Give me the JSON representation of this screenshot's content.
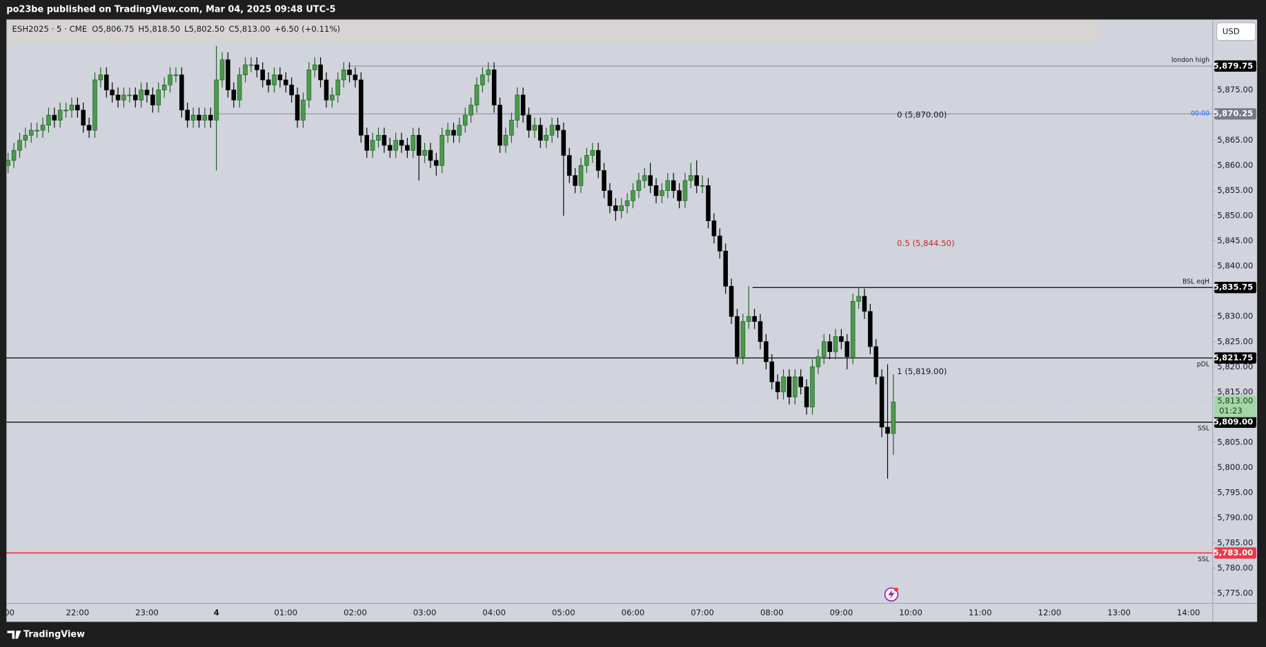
{
  "header": {
    "published": "po23be published on TradingView.com, Mar 04, 2025 09:48 UTC-5"
  },
  "footer": {
    "brand": "TradingView"
  },
  "chart_data": {
    "type": "candlestick",
    "legend": {
      "symbol": "ESH2025 · 5 · CME",
      "values": [
        "O5,806.75",
        "H5,818.50",
        "L5,802.50",
        "C5,813.00",
        "+6.50 (+0.11%)"
      ]
    },
    "currency": "USD",
    "categories": [
      ":00",
      null,
      null,
      null,
      null,
      null,
      null,
      null,
      null,
      null,
      null,
      null,
      "22:00",
      null,
      null,
      null,
      null,
      null,
      null,
      null,
      null,
      null,
      null,
      null,
      "23:00",
      null,
      null,
      null,
      null,
      null,
      null,
      null,
      null,
      null,
      null,
      null,
      "4",
      null,
      null,
      null,
      null,
      null,
      null,
      null,
      null,
      null,
      null,
      null,
      "01:00",
      null,
      null,
      null,
      null,
      null,
      null,
      null,
      null,
      null,
      null,
      null,
      "02:00",
      null,
      null,
      null,
      null,
      null,
      null,
      null,
      null,
      null,
      null,
      null,
      "03:00",
      null,
      null,
      null,
      null,
      null,
      null,
      null,
      null,
      null,
      null,
      null,
      "04:00",
      null,
      null,
      null,
      null,
      null,
      null,
      null,
      null,
      null,
      null,
      null,
      "05:00",
      null,
      null,
      null,
      null,
      null,
      null,
      null,
      null,
      null,
      null,
      null,
      "06:00",
      null,
      null,
      null,
      null,
      null,
      null,
      null,
      null,
      null,
      null,
      null,
      "07:00",
      null,
      null,
      null,
      null,
      null,
      null,
      null,
      null,
      null,
      null,
      null,
      "08:00",
      null,
      null,
      null,
      null,
      null,
      null,
      null,
      null,
      null,
      null,
      null,
      "09:00",
      null,
      null,
      null,
      null,
      null,
      null,
      null,
      null,
      null,
      null,
      null,
      "10:00",
      null,
      null,
      null,
      null,
      null,
      null,
      null,
      null,
      null,
      null,
      null,
      "11:00",
      null,
      null,
      null,
      null,
      null,
      null,
      null,
      null,
      null,
      null,
      null,
      "12:00",
      null,
      null,
      null,
      null,
      null,
      null,
      null,
      null,
      null,
      null,
      null,
      "13:00",
      null,
      null,
      null,
      null,
      null,
      null,
      null,
      null,
      null,
      null,
      null,
      "14:00",
      null,
      null,
      null,
      null
    ],
    "open": [
      5860,
      5861,
      5863,
      5865,
      5866,
      5867,
      5867,
      5868,
      5870,
      5869,
      5871,
      5871,
      5872,
      5871,
      5868,
      5867,
      5877,
      5878,
      5875,
      5874,
      5873,
      5874,
      5874,
      5873,
      5875,
      5874,
      5872,
      5875,
      5876,
      5878,
      5878,
      5871,
      5869,
      5870,
      5869,
      5870,
      5869,
      5877,
      5881,
      5875,
      5873,
      5878,
      5880,
      5880,
      5879,
      5877,
      5876,
      5878,
      5877,
      5876,
      5874,
      5869,
      5873,
      5879,
      5880,
      5877,
      5873,
      5874,
      5877,
      5879,
      5878,
      5877,
      5866,
      5863,
      5865,
      5866,
      5864,
      5863,
      5865,
      5864,
      5863,
      5866,
      5862,
      5863,
      5861,
      5860,
      5866,
      5867,
      5866,
      5868,
      5870,
      5872,
      5876,
      5878,
      5879,
      5872,
      5864,
      5866,
      5869,
      5874,
      5870,
      5867,
      5868,
      5865,
      5866,
      5868,
      5867,
      5862,
      5858,
      5856,
      5860,
      5862,
      5863,
      5859,
      5855,
      5852,
      5851,
      5852,
      5853,
      5855,
      5857,
      5858,
      5856,
      5854,
      5855,
      5857,
      5855,
      5853,
      5857,
      5858,
      5856,
      5856,
      5849,
      5846,
      5843,
      5836,
      5830,
      5822,
      5829,
      5830,
      5829,
      5825,
      5821,
      5817,
      5815,
      5818,
      5814,
      5818,
      5816,
      5812,
      5820,
      5822,
      5825,
      5823,
      5826,
      5825,
      5822,
      5833,
      5834,
      5831,
      5824,
      5818,
      5808,
      5806.75,
      null,
      null,
      null,
      null,
      null,
      null,
      null,
      null,
      null,
      null,
      null,
      null,
      null,
      null,
      null,
      null,
      null,
      null,
      null,
      null,
      null,
      null,
      null,
      null,
      null,
      null,
      null,
      null,
      null,
      null,
      null,
      null,
      null,
      null,
      null,
      null,
      null,
      null,
      null,
      null,
      null,
      null,
      null,
      null,
      null,
      null,
      null,
      null,
      null,
      null,
      null,
      null,
      null,
      null,
      null
    ],
    "high": [
      5862.5,
      5864.5,
      5866.5,
      5867.5,
      5868.5,
      5868.5,
      5869.5,
      5871.5,
      5871.5,
      5872.5,
      5872.5,
      5873.5,
      5873.5,
      5872.5,
      5869.5,
      5878.5,
      5879.5,
      5879.5,
      5876.5,
      5875.5,
      5875.5,
      5875.5,
      5875.5,
      5876.5,
      5876.5,
      5875.5,
      5876.5,
      5877.5,
      5879.5,
      5879.5,
      5879.5,
      5872.5,
      5871.5,
      5871.5,
      5871.5,
      5871.5,
      5883.75,
      5882.5,
      5882.5,
      5876.5,
      5879.5,
      5881.5,
      5881.5,
      5881.5,
      5880.5,
      5878.5,
      5879.5,
      5879.5,
      5878.5,
      5877.5,
      5875.5,
      5874.5,
      5880.5,
      5881.5,
      5881.5,
      5878.5,
      5875.5,
      5878.5,
      5880.5,
      5880.5,
      5879.5,
      5878.5,
      5867.5,
      5866.5,
      5867.5,
      5867.5,
      5865.5,
      5866.5,
      5866.5,
      5865.5,
      5867.5,
      5867.5,
      5864.5,
      5864.5,
      5862.5,
      5867.5,
      5868.5,
      5868.5,
      5869.5,
      5871.5,
      5873.5,
      5877.5,
      5879.5,
      5880.5,
      5880.5,
      5873.5,
      5867.5,
      5870.5,
      5875.5,
      5875.5,
      5871.5,
      5869.5,
      5869.5,
      5867.5,
      5869.5,
      5869.5,
      5868.5,
      5863.5,
      5859.5,
      5861.5,
      5863.5,
      5864.5,
      5864.5,
      5860.5,
      5856.5,
      5853.5,
      5853.5,
      5854.5,
      5856.5,
      5858.5,
      5859.5,
      5860.5,
      5857.5,
      5856.5,
      5858.5,
      5858.5,
      5856.5,
      5858.5,
      5860.5,
      5861,
      5858,
      5857.5,
      5850.5,
      5847.5,
      5844.5,
      5837.5,
      5831.5,
      5830.5,
      5836,
      5831.5,
      5830.5,
      5826.5,
      5822.5,
      5818.5,
      5819.5,
      5819.5,
      5819.5,
      5819.5,
      5817.5,
      5821.5,
      5823.5,
      5826.5,
      5826.5,
      5827.5,
      5827.5,
      5826.5,
      5834.5,
      5835.75,
      5835.5,
      5832.5,
      5825.5,
      5819.5,
      5820.5,
      5818.5,
      null,
      null,
      null,
      null,
      null,
      null,
      null,
      null,
      null,
      null,
      null,
      null,
      null,
      null,
      null,
      null,
      null,
      null,
      null,
      null,
      null,
      null,
      null,
      null,
      null,
      null,
      null,
      null,
      null,
      null,
      null,
      null,
      null,
      null,
      null,
      null,
      null,
      null,
      null,
      null,
      null,
      null,
      null,
      null,
      null,
      null,
      null,
      null,
      null,
      null,
      null,
      null,
      null,
      null,
      null
    ],
    "low": [
      5858.5,
      5859.5,
      5861.5,
      5863.5,
      5864.5,
      5865.5,
      5865.5,
      5866.5,
      5867.5,
      5867.5,
      5869.5,
      5869.5,
      5869.5,
      5866.5,
      5865.5,
      5865.5,
      5875.5,
      5873.5,
      5872.5,
      5871.5,
      5871.5,
      5872.5,
      5871.5,
      5871.5,
      5872.5,
      5870.5,
      5870.5,
      5873.5,
      5874.5,
      5876.5,
      5869.5,
      5867.5,
      5867.5,
      5867.5,
      5867.5,
      5867.5,
      5859,
      5875.5,
      5873.5,
      5871.5,
      5871.5,
      5876.5,
      5878.5,
      5877.5,
      5875.5,
      5874.5,
      5874.5,
      5875.5,
      5874.5,
      5872.5,
      5867.5,
      5867.5,
      5871.5,
      5877.5,
      5875.5,
      5871.5,
      5871.5,
      5872.5,
      5875.5,
      5876.5,
      5875.5,
      5864.5,
      5861.5,
      5861.5,
      5863.5,
      5862.5,
      5861.5,
      5861.5,
      5862.5,
      5861.5,
      5861.5,
      5857,
      5860.5,
      5859.5,
      5858,
      5858.5,
      5864.5,
      5864.5,
      5864.5,
      5866.5,
      5868.5,
      5870.5,
      5874.5,
      5876.5,
      5870.5,
      5862.5,
      5862.5,
      5864.5,
      5867.5,
      5868.5,
      5865.5,
      5865.5,
      5863.5,
      5863.5,
      5864.5,
      5865.5,
      5850,
      5856.5,
      5854.5,
      5854.5,
      5858.5,
      5860.5,
      5857.5,
      5853.5,
      5850.5,
      5849,
      5849.5,
      5850.5,
      5851.5,
      5853.5,
      5855.5,
      5854.5,
      5852.5,
      5852.5,
      5853.5,
      5853.5,
      5851.5,
      5851.5,
      5855.5,
      5854.5,
      5854.5,
      5847.5,
      5844.5,
      5841.5,
      5834.5,
      5828.5,
      5820.5,
      5820.5,
      5827.5,
      5827.5,
      5823.5,
      5819.5,
      5815.5,
      5813.5,
      5813.5,
      5812.5,
      5812.5,
      5814.5,
      5810.5,
      5810.5,
      5818.5,
      5820.5,
      5821.5,
      5821.5,
      5823.5,
      5819.5,
      5820.5,
      5831.5,
      5829.5,
      5822.5,
      5816.5,
      5806,
      5797.75,
      5802.5,
      null,
      null,
      null,
      null,
      null,
      null,
      null,
      null,
      null,
      null,
      null,
      null,
      null,
      null,
      null,
      null,
      null,
      null,
      null,
      null,
      null,
      null,
      null,
      null,
      null,
      null,
      null,
      null,
      null,
      null,
      null,
      null,
      null,
      null,
      null,
      null,
      null,
      null,
      null,
      null,
      null,
      null,
      null,
      null,
      null,
      null,
      null,
      null,
      null,
      null,
      null,
      null,
      null,
      null,
      null
    ],
    "close": [
      5861,
      5863,
      5865,
      5866,
      5867,
      5867,
      5868,
      5870,
      5869,
      5871,
      5871,
      5872,
      5871,
      5868,
      5867,
      5877,
      5878,
      5875,
      5874,
      5873,
      5874,
      5874,
      5873,
      5875,
      5874,
      5872,
      5875,
      5876,
      5878,
      5878,
      5871,
      5869,
      5870,
      5869,
      5870,
      5869,
      5877,
      5881,
      5875,
      5873,
      5878,
      5880,
      5880,
      5879,
      5877,
      5876,
      5878,
      5877,
      5876,
      5874,
      5869,
      5873,
      5879,
      5880,
      5877,
      5873,
      5874,
      5877,
      5879,
      5878,
      5877,
      5866,
      5863,
      5865,
      5866,
      5864,
      5863,
      5865,
      5864,
      5863,
      5866,
      5862,
      5863,
      5861,
      5860,
      5866,
      5867,
      5866,
      5868,
      5870,
      5872,
      5876,
      5878,
      5879,
      5872,
      5864,
      5866,
      5869,
      5874,
      5870,
      5867,
      5868,
      5865,
      5866,
      5868,
      5867,
      5862,
      5858,
      5856,
      5860,
      5862,
      5863,
      5859,
      5855,
      5852,
      5851,
      5852,
      5853,
      5855,
      5857,
      5858,
      5856,
      5854,
      5855,
      5857,
      5855,
      5853,
      5857,
      5858,
      5856,
      5856,
      5849,
      5846,
      5843,
      5836,
      5830,
      5822,
      5829,
      5830,
      5829,
      5825,
      5821,
      5817,
      5815,
      5818,
      5814,
      5818,
      5816,
      5812,
      5820,
      5822,
      5825,
      5823,
      5826,
      5825,
      5822,
      5833,
      5834,
      5831,
      5824,
      5818,
      5808,
      5806.75,
      5813,
      null,
      null,
      null,
      null,
      null,
      null,
      null,
      null,
      null,
      null,
      null,
      null,
      null,
      null,
      null,
      null,
      null,
      null,
      null,
      null,
      null,
      null,
      null,
      null,
      null,
      null,
      null,
      null,
      null,
      null,
      null,
      null,
      null,
      null,
      null,
      null,
      null,
      null,
      null,
      null,
      null,
      null,
      null,
      null,
      null,
      null,
      null,
      null,
      null,
      null,
      null,
      null,
      null,
      null,
      null
    ],
    "up_color": "#4c9a4c",
    "up_border": "#1b5e20",
    "down_color": "#000000",
    "ylim": [
      5773,
      5889
    ],
    "yticks": [
      {
        "value": 5875,
        "label": "5,875.00"
      },
      {
        "value": 5865,
        "label": "5,865.00"
      },
      {
        "value": 5860,
        "label": "5,860.00"
      },
      {
        "value": 5855,
        "label": "5,855.00"
      },
      {
        "value": 5850,
        "label": "5,850.00"
      },
      {
        "value": 5845,
        "label": "5,845.00"
      },
      {
        "value": 5840,
        "label": "5,840.00"
      },
      {
        "value": 5830,
        "label": "5,830.00"
      },
      {
        "value": 5825,
        "label": "5,825.00"
      },
      {
        "value": 5820,
        "label": "5,820.00"
      },
      {
        "value": 5815,
        "label": "5,815.00"
      },
      {
        "value": 5805,
        "label": "5,805.00"
      },
      {
        "value": 5800,
        "label": "5,800.00"
      },
      {
        "value": 5795,
        "label": "5,795.00"
      },
      {
        "value": 5790,
        "label": "5,790.00"
      },
      {
        "value": 5785,
        "label": "5,785.00"
      },
      {
        "value": 5780,
        "label": "5,780.00"
      },
      {
        "value": 5775,
        "label": "5,775.00"
      }
    ],
    "grid": false,
    "levels": [
      {
        "name": "london high",
        "price": 5879.75,
        "price_label": "5,879.75",
        "color": "#9598a1",
        "text_color": "#131722",
        "tag_color": "#000000"
      },
      {
        "name": "00:00",
        "price": 5870.25,
        "price_label": "5,870.25",
        "color": "#9598a1",
        "text_color": "#2962ff",
        "tag_color": "#787b86"
      },
      {
        "name": "BSL eqH",
        "price": 5835.75,
        "price_label": "5,835.75",
        "color": "#000000",
        "text_color": "#131722",
        "tag_color": "#000000"
      },
      {
        "name": "pDL",
        "price": 5821.75,
        "price_label": "5,821.75",
        "color": "#000000",
        "text_color": "#131722",
        "tag_color": "#000000"
      },
      {
        "name": "SSL",
        "price": 5809,
        "price_label": "5,809.00",
        "color": "#000000",
        "text_color": "#131722",
        "tag_color": "#000000"
      },
      {
        "name": "SSL",
        "price": 5783,
        "price_label": "5,783.00",
        "color": "#f23645",
        "text_color": "#131722",
        "tag_color": "#f23645"
      }
    ],
    "fib": [
      {
        "price": 5870,
        "label": "0 (5,870.00)",
        "color": "#131722"
      },
      {
        "price": 5844.5,
        "label": "0.5 (5,844.50)",
        "color": "#c62828"
      },
      {
        "price": 5819,
        "label": "1 (5,819.00)",
        "color": "#131722"
      }
    ],
    "current": {
      "price": 5813,
      "label": "5,813.00",
      "countdown": "01:23",
      "color": "#a5d6a7"
    }
  }
}
